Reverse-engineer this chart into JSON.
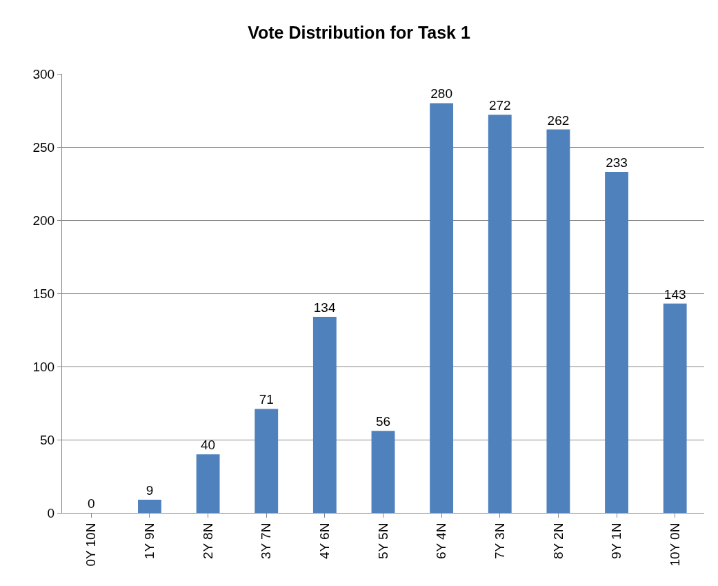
{
  "chart_data": {
    "type": "bar",
    "title": "Vote Distribution for Task 1",
    "categories": [
      "0Y 10N",
      "1Y 9N",
      "2Y 8N",
      "3Y 7N",
      "4Y 6N",
      "5Y 5N",
      "6Y 4N",
      "7Y 3N",
      "8Y 2N",
      "9Y 1N",
      "10Y 0N"
    ],
    "values": [
      0,
      9,
      40,
      71,
      134,
      56,
      280,
      272,
      262,
      233,
      143
    ],
    "color": "#4f81bd",
    "ylim": [
      0,
      300
    ],
    "yticks": [
      0,
      50,
      100,
      150,
      200,
      250,
      300
    ],
    "grid": "y",
    "data_labels": true,
    "legend": false
  }
}
